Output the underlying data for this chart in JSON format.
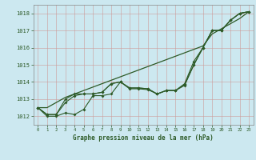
{
  "title": "Graphe pression niveau de la mer (hPa)",
  "background_color": "#cce8f0",
  "grid_color": "#aaaaaa",
  "line_color": "#2d5a27",
  "x_range": [
    -0.5,
    23.5
  ],
  "y_range": [
    1011.5,
    1018.5
  ],
  "y_ticks": [
    1012,
    1013,
    1014,
    1015,
    1016,
    1017,
    1018
  ],
  "x_ticks": [
    0,
    1,
    2,
    3,
    4,
    5,
    6,
    7,
    8,
    9,
    10,
    11,
    12,
    13,
    14,
    15,
    16,
    17,
    18,
    19,
    20,
    21,
    22,
    23
  ],
  "series1": [
    1012.5,
    1012.1,
    1012.1,
    1012.8,
    1013.2,
    1013.3,
    1013.3,
    1013.4,
    1013.9,
    1014.0,
    1013.65,
    1013.65,
    1013.6,
    1013.3,
    1013.5,
    1013.5,
    1013.85,
    1015.0,
    1016.0,
    1017.0,
    1017.0,
    1017.6,
    1018.0,
    1018.1
  ],
  "series2": [
    1012.5,
    1012.1,
    1012.1,
    1013.0,
    1013.3,
    1013.3,
    1013.3,
    1013.4,
    1013.9,
    1014.0,
    1013.65,
    1013.65,
    1013.6,
    1013.3,
    1013.5,
    1013.5,
    1013.9,
    1015.2,
    1016.0,
    1017.0,
    1017.0,
    1017.6,
    1018.0,
    1018.1
  ],
  "series3_straight": [
    1012.5,
    1012.5,
    1012.8,
    1013.1,
    1013.3,
    1013.5,
    1013.7,
    1013.9,
    1014.1,
    1014.3,
    1014.5,
    1014.7,
    1014.9,
    1015.1,
    1015.3,
    1015.5,
    1015.7,
    1015.9,
    1016.1,
    1016.8,
    1017.1,
    1017.4,
    1017.7,
    1018.1
  ],
  "series4": [
    1012.5,
    1012.0,
    1012.0,
    1012.2,
    1012.1,
    1012.4,
    1013.2,
    1013.2,
    1013.3,
    1014.0,
    1013.6,
    1013.6,
    1013.55,
    1013.3,
    1013.5,
    1013.5,
    1013.8,
    1015.0,
    1016.0,
    1017.0,
    1017.0,
    1017.6,
    1018.0,
    1018.1
  ]
}
